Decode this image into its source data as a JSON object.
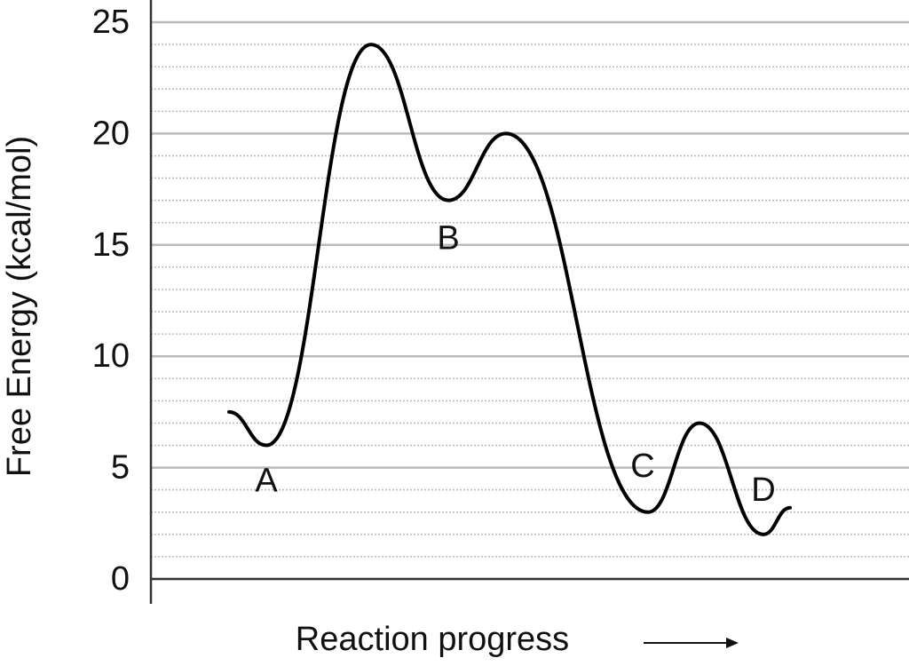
{
  "chart_data": {
    "type": "line",
    "ylabel": "Free Energy (kcal/mol)",
    "xlabel": "Reaction progress",
    "categories": [
      null,
      "A",
      null,
      "B",
      null,
      "C",
      null,
      "D",
      null
    ],
    "series": [
      {
        "name": null,
        "color": "#000000",
        "values": [
          7.5,
          6,
          24,
          17,
          20,
          3,
          7,
          2,
          3.2
        ]
      }
    ],
    "ylim": [
      0,
      25
    ],
    "yticks": [
      0,
      5,
      10,
      15,
      20,
      25
    ],
    "minor_yticks": [
      1,
      2,
      3,
      4,
      6,
      7,
      8,
      9,
      11,
      12,
      13,
      14,
      16,
      17,
      18,
      19,
      21,
      22,
      23,
      24
    ],
    "grid": true
  }
}
